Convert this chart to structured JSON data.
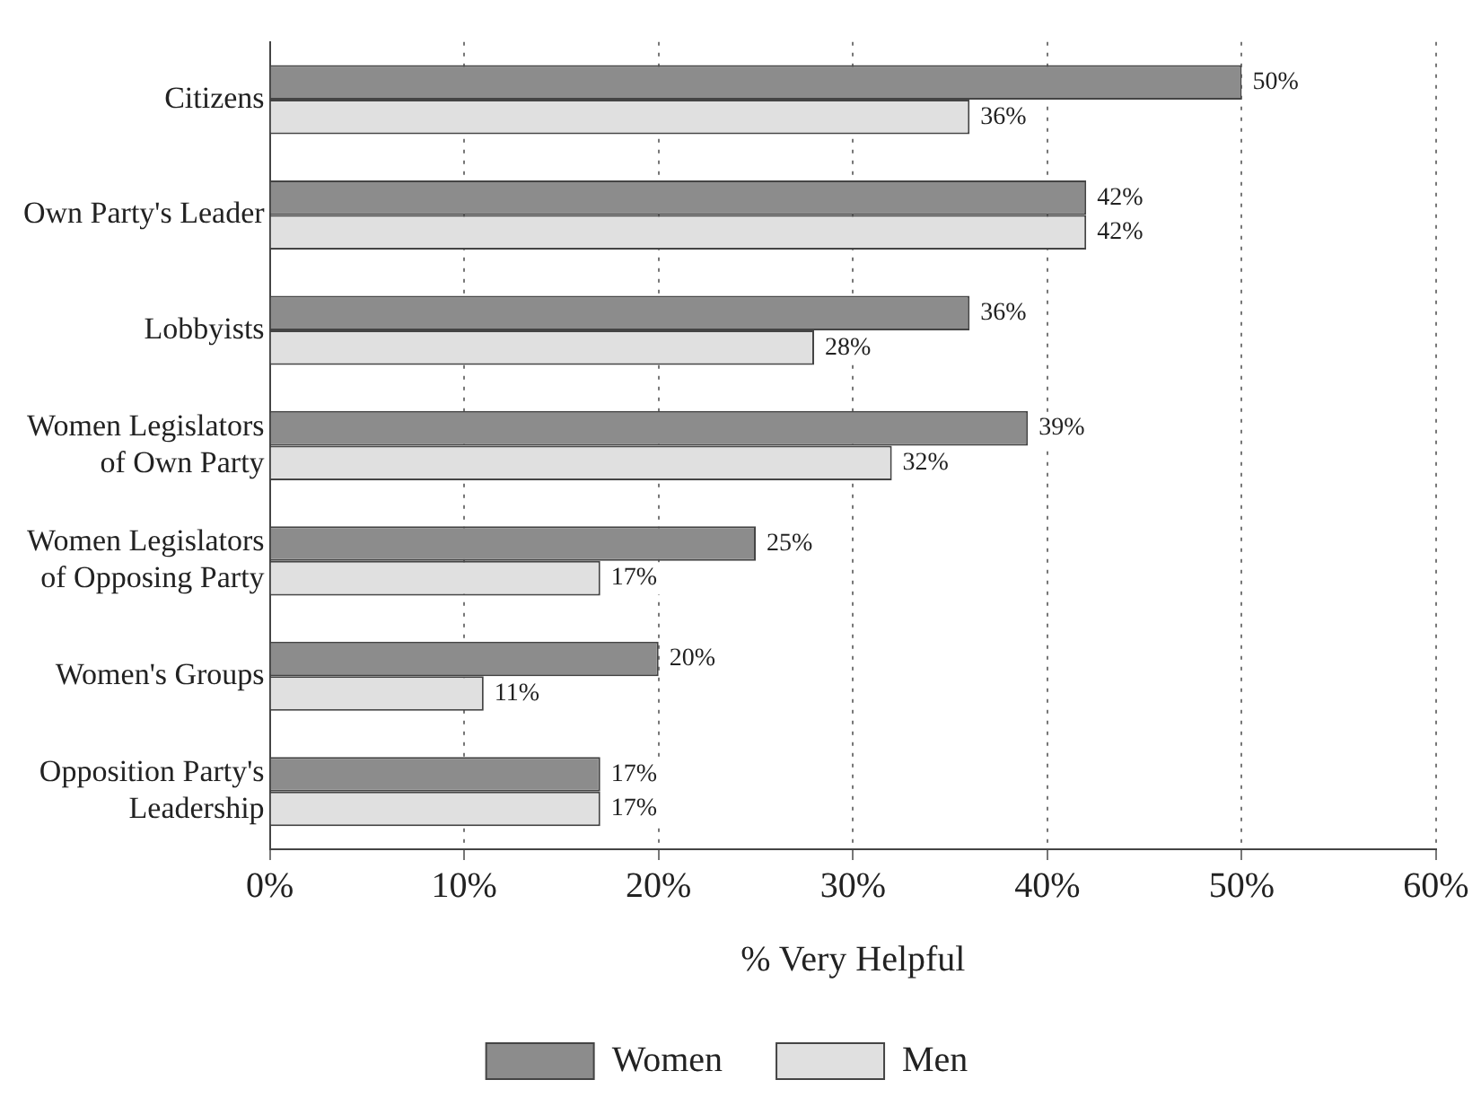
{
  "chart_data": {
    "type": "bar",
    "orientation": "horizontal",
    "xlabel": "% Very Helpful",
    "categories": [
      "Citizens",
      "Own Party's Leader",
      "Lobbyists",
      "Women Legislators\nof Own Party",
      "Women Legislators\nof Opposing Party",
      "Women's Groups",
      "Opposition Party's\nLeadership"
    ],
    "series": [
      {
        "name": "Women",
        "color": "#8c8c8c",
        "values": [
          50,
          42,
          36,
          39,
          25,
          20,
          17
        ],
        "value_labels": [
          "50%",
          "42%",
          "36%",
          "39%",
          "25%",
          "20%",
          "17%"
        ]
      },
      {
        "name": "Men",
        "color": "#e0e0e0",
        "values": [
          36,
          42,
          28,
          32,
          17,
          11,
          17
        ],
        "value_labels": [
          "36%",
          "42%",
          "28%",
          "32%",
          "17%",
          "11%",
          "17%"
        ]
      }
    ],
    "xlim": [
      0,
      60
    ],
    "xticks": [
      {
        "value": 0,
        "label": "0%"
      },
      {
        "value": 10,
        "label": "10%"
      },
      {
        "value": 20,
        "label": "20%"
      },
      {
        "value": 30,
        "label": "30%"
      },
      {
        "value": 40,
        "label": "40%"
      },
      {
        "value": 50,
        "label": "50%"
      },
      {
        "value": 60,
        "label": "60%"
      }
    ],
    "grid": "x",
    "legend": "bottom"
  }
}
